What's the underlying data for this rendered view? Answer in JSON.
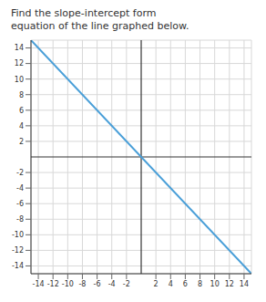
{
  "chart_data": {
    "type": "line",
    "title": "Find the slope-intercept form equation of the line graphed below.",
    "x": [
      -15,
      15
    ],
    "values": [
      15,
      -15
    ],
    "color": "#4a9fd8",
    "xlim": [
      -15,
      15
    ],
    "ylim": [
      -15,
      15
    ],
    "xticks": [
      -14,
      -12,
      -10,
      -8,
      -6,
      -4,
      -2,
      2,
      4,
      6,
      8,
      10,
      12,
      14
    ],
    "yticks": [
      -14,
      -12,
      -10,
      -8,
      -6,
      -4,
      -2,
      2,
      4,
      6,
      8,
      10,
      12,
      14
    ],
    "grid": true
  }
}
